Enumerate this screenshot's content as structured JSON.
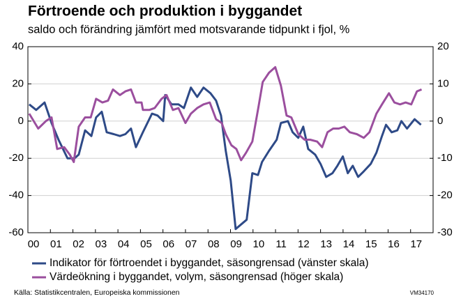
{
  "chart_data": {
    "type": "line",
    "title": "Förtroende och produktion i byggandet",
    "subtitle": "saldo och förändring jämfört med motsvarande tidpunkt i fjol, %",
    "source": "Källa: Statistikcentralen, Europeiska kommissionen",
    "code": "VM34170",
    "grid": true,
    "legend": "bottom",
    "xlim": [
      2000,
      2018
    ],
    "xticks": [
      {
        "value": 2000,
        "label": "00"
      },
      {
        "value": 2001,
        "label": "01"
      },
      {
        "value": 2002,
        "label": "02"
      },
      {
        "value": 2003,
        "label": "03"
      },
      {
        "value": 2004,
        "label": "04"
      },
      {
        "value": 2005,
        "label": "05"
      },
      {
        "value": 2006,
        "label": "06"
      },
      {
        "value": 2007,
        "label": "07"
      },
      {
        "value": 2008,
        "label": "08"
      },
      {
        "value": 2009,
        "label": "09"
      },
      {
        "value": 2010,
        "label": "10"
      },
      {
        "value": 2011,
        "label": "11"
      },
      {
        "value": 2012,
        "label": "12"
      },
      {
        "value": 2013,
        "label": "13"
      },
      {
        "value": 2014,
        "label": "14"
      },
      {
        "value": 2015,
        "label": "15"
      },
      {
        "value": 2016,
        "label": "16"
      },
      {
        "value": 2017,
        "label": "17"
      }
    ],
    "ylim": [
      -60,
      40
    ],
    "yticks": [
      -60,
      -40,
      -20,
      0,
      20,
      40
    ],
    "y2lim": [
      -30,
      20
    ],
    "y2ticks": [
      -30,
      -20,
      -10,
      0,
      10,
      20
    ],
    "series": [
      {
        "name": "Indikator för förtroendet i byggandet, säsongrensad (vänster skala)",
        "color": "#2e4a87",
        "axis": "y",
        "x": [
          2000.06,
          2000.37,
          2000.74,
          2001.05,
          2001.36,
          2001.76,
          2002.07,
          2002.26,
          2002.54,
          2002.82,
          2003.03,
          2003.28,
          2003.5,
          2003.81,
          2004.09,
          2004.33,
          2004.58,
          2004.8,
          2005.11,
          2005.51,
          2005.76,
          2006.01,
          2006.1,
          2006.38,
          2006.69,
          2006.93,
          2007.24,
          2007.52,
          2007.8,
          2008.11,
          2008.36,
          2008.58,
          2008.79,
          2009.01,
          2009.23,
          2009.72,
          2009.97,
          2010.22,
          2010.4,
          2010.71,
          2011.05,
          2011.24,
          2011.55,
          2011.76,
          2012.01,
          2012.23,
          2012.45,
          2012.76,
          2013.0,
          2013.25,
          2013.53,
          2013.75,
          2013.99,
          2014.21,
          2014.43,
          2014.67,
          2014.92,
          2015.23,
          2015.48,
          2015.73,
          2015.91,
          2016.16,
          2016.41,
          2016.59,
          2016.84,
          2017.18,
          2017.46
        ],
        "values": [
          9,
          6,
          10,
          -1,
          -10,
          -20,
          -20,
          -18,
          -5,
          -8,
          2,
          5,
          -6,
          -7,
          -8,
          -7,
          -4,
          -14,
          -6,
          4,
          3,
          0,
          14,
          9,
          9,
          7,
          18,
          13,
          18,
          15,
          11,
          3,
          -16,
          -32,
          -58,
          -53,
          -28,
          -29,
          -22,
          -16,
          -10,
          -1,
          0,
          -6,
          -9,
          -3,
          -15,
          -18,
          -23,
          -30,
          -28,
          -24,
          -19,
          -28,
          -24,
          -30,
          -27,
          -23,
          -17,
          -8,
          -2,
          -6,
          -5,
          0,
          -4,
          1,
          -2
        ]
      },
      {
        "name": "Värdeökning i byggandet, volym, säsongrensad (höger skala)",
        "color": "#9b4f9e",
        "axis": "y2",
        "x": [
          2000.06,
          2000.46,
          2000.8,
          2001.05,
          2001.3,
          2001.61,
          2001.86,
          2002.04,
          2002.26,
          2002.54,
          2002.79,
          2003.03,
          2003.31,
          2003.56,
          2003.78,
          2004.09,
          2004.33,
          2004.58,
          2004.8,
          2005.05,
          2005.11,
          2005.39,
          2005.63,
          2005.94,
          2006.16,
          2006.44,
          2006.69,
          2007.0,
          2007.24,
          2007.52,
          2007.8,
          2008.08,
          2008.36,
          2008.61,
          2008.79,
          2009.04,
          2009.26,
          2009.47,
          2009.69,
          2009.97,
          2010.25,
          2010.43,
          2010.71,
          2010.99,
          2011.24,
          2011.49,
          2011.7,
          2012.01,
          2012.29,
          2012.54,
          2012.85,
          2013.07,
          2013.31,
          2013.56,
          2013.81,
          2014.06,
          2014.3,
          2014.61,
          2014.92,
          2015.17,
          2015.48,
          2015.73,
          2016.04,
          2016.28,
          2016.53,
          2016.78,
          2017.03,
          2017.28,
          2017.49
        ],
        "values": [
          2,
          -2,
          0,
          1,
          -7.5,
          -7,
          -9,
          -11,
          -1.5,
          1,
          1,
          6,
          5,
          5.5,
          8.5,
          7,
          8,
          8.5,
          5,
          5,
          3,
          3,
          3.5,
          6,
          7,
          3,
          3.5,
          -0.5,
          2,
          3.5,
          4.5,
          5,
          0.5,
          -0.5,
          -3.5,
          -6.5,
          -7.5,
          -10.5,
          -8.5,
          -5.5,
          4,
          10.5,
          13,
          14.5,
          9.5,
          1.5,
          1,
          -3.5,
          -5,
          -5,
          -5.5,
          -7,
          -3,
          -2,
          -2,
          -1.5,
          -3,
          -3.5,
          -4.5,
          -3,
          2,
          4.5,
          7.5,
          5,
          4.5,
          5,
          4.5,
          8,
          8.5
        ]
      }
    ]
  }
}
